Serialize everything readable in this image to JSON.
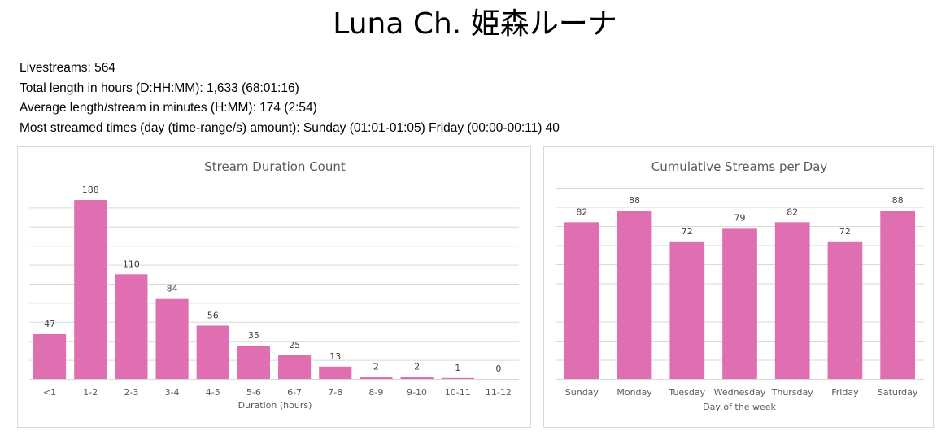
{
  "title": "Luna Ch. 姫森ルーナ",
  "stats": [
    "Livestreams: 564",
    "Total length in hours (D:HH:MM): 1,633 (68:01:16)",
    "Average length/stream in minutes (H:MM): 174 (2:54)",
    "Most streamed times (day (time-range/s) amount): Sunday (01:01-01:05) Friday (00:00-00:11) 40"
  ],
  "colors": {
    "bar": "#DF6FB1",
    "grid": "#D9D9D9",
    "text": "#595959"
  },
  "chart_data": [
    {
      "type": "bar",
      "title": "Stream Duration Count",
      "xlabel": "Duration (hours)",
      "ylabel": "",
      "categories": [
        "<1",
        "1-2",
        "2-3",
        "3-4",
        "4-5",
        "5-6",
        "6-7",
        "7-8",
        "8-9",
        "9-10",
        "10-11",
        "11-12"
      ],
      "values": [
        47,
        188,
        110,
        84,
        56,
        35,
        25,
        13,
        2,
        2,
        1,
        0
      ],
      "ylim": [
        0,
        200
      ],
      "grid": true,
      "legend": "none"
    },
    {
      "type": "bar",
      "title": "Cumulative Streams per Day",
      "xlabel": "Day of the week",
      "ylabel": "",
      "categories": [
        "Sunday",
        "Monday",
        "Tuesday",
        "Wednesday",
        "Thursday",
        "Friday",
        "Saturday"
      ],
      "values": [
        82,
        88,
        72,
        79,
        82,
        72,
        88
      ],
      "ylim": [
        0,
        100
      ],
      "grid": true,
      "legend": "none"
    }
  ]
}
